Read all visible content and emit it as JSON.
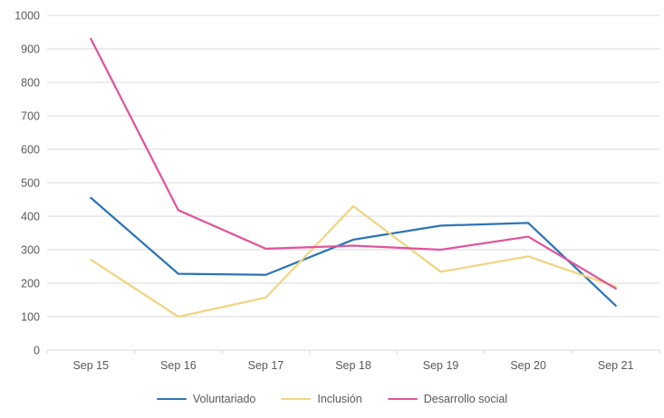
{
  "chart_data": {
    "type": "line",
    "title": "",
    "categories": [
      "Sep 15",
      "Sep 16",
      "Sep 17",
      "Sep 18",
      "Sep 19",
      "Sep 20",
      "Sep 21"
    ],
    "series": [
      {
        "name": "Voluntariado",
        "color": "#2E75B6",
        "values": [
          455,
          228,
          225,
          330,
          372,
          380,
          133
        ]
      },
      {
        "name": "Inclusión",
        "color": "#F0D582",
        "values": [
          270,
          100,
          157,
          430,
          234,
          280,
          190
        ]
      },
      {
        "name": "Desarrollo social",
        "color": "#E0549B",
        "values": [
          930,
          418,
          303,
          312,
          300,
          339,
          184
        ]
      }
    ],
    "ylim": [
      0,
      1000
    ],
    "y_tick_step": 100,
    "y_tick_labels": [
      "0",
      "100",
      "200",
      "300",
      "400",
      "500",
      "600",
      "700",
      "800",
      "900",
      "1000"
    ],
    "grid": "horizontal-only",
    "legend_position": "bottom",
    "colors": {
      "axis_text": "#595959",
      "gridline": "#D9D9D9",
      "axis_line": "#D9D9D9",
      "background": "#FFFFFF"
    }
  }
}
